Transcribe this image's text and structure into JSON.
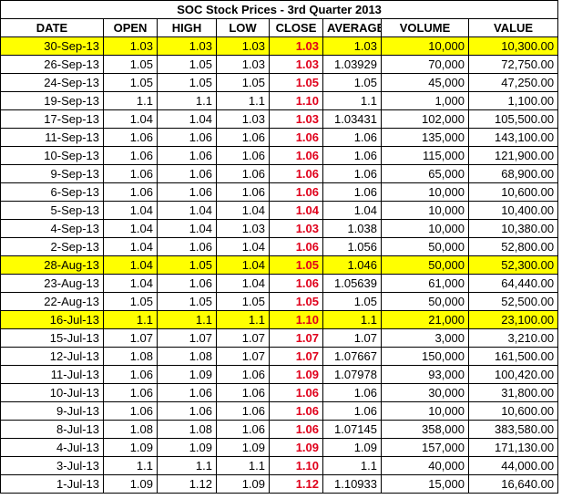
{
  "title": "SOC Stock Prices - 3rd Quarter 2013",
  "headers": [
    "DATE",
    "OPEN",
    "HIGH",
    "LOW",
    "CLOSE",
    "AVERAGE",
    "VOLUME",
    "VALUE"
  ],
  "colors": {
    "highlight": "#ffff00",
    "close_text": "#e0001b"
  },
  "rows": [
    {
      "date": "30-Sep-13",
      "open": "1.03",
      "high": "1.03",
      "low": "1.03",
      "close": "1.03",
      "average": "1.03",
      "volume": "10,000",
      "value": "10,300.00",
      "highlight": true
    },
    {
      "date": "26-Sep-13",
      "open": "1.05",
      "high": "1.05",
      "low": "1.03",
      "close": "1.03",
      "average": "1.03929",
      "volume": "70,000",
      "value": "72,750.00",
      "highlight": false
    },
    {
      "date": "24-Sep-13",
      "open": "1.05",
      "high": "1.05",
      "low": "1.05",
      "close": "1.05",
      "average": "1.05",
      "volume": "45,000",
      "value": "47,250.00",
      "highlight": false
    },
    {
      "date": "19-Sep-13",
      "open": "1.1",
      "high": "1.1",
      "low": "1.1",
      "close": "1.10",
      "average": "1.1",
      "volume": "1,000",
      "value": "1,100.00",
      "highlight": false
    },
    {
      "date": "17-Sep-13",
      "open": "1.04",
      "high": "1.04",
      "low": "1.03",
      "close": "1.03",
      "average": "1.03431",
      "volume": "102,000",
      "value": "105,500.00",
      "highlight": false
    },
    {
      "date": "11-Sep-13",
      "open": "1.06",
      "high": "1.06",
      "low": "1.06",
      "close": "1.06",
      "average": "1.06",
      "volume": "135,000",
      "value": "143,100.00",
      "highlight": false
    },
    {
      "date": "10-Sep-13",
      "open": "1.06",
      "high": "1.06",
      "low": "1.06",
      "close": "1.06",
      "average": "1.06",
      "volume": "115,000",
      "value": "121,900.00",
      "highlight": false
    },
    {
      "date": "9-Sep-13",
      "open": "1.06",
      "high": "1.06",
      "low": "1.06",
      "close": "1.06",
      "average": "1.06",
      "volume": "65,000",
      "value": "68,900.00",
      "highlight": false
    },
    {
      "date": "6-Sep-13",
      "open": "1.06",
      "high": "1.06",
      "low": "1.06",
      "close": "1.06",
      "average": "1.06",
      "volume": "10,000",
      "value": "10,600.00",
      "highlight": false
    },
    {
      "date": "5-Sep-13",
      "open": "1.04",
      "high": "1.04",
      "low": "1.04",
      "close": "1.04",
      "average": "1.04",
      "volume": "10,000",
      "value": "10,400.00",
      "highlight": false
    },
    {
      "date": "4-Sep-13",
      "open": "1.04",
      "high": "1.04",
      "low": "1.03",
      "close": "1.03",
      "average": "1.038",
      "volume": "10,000",
      "value": "10,380.00",
      "highlight": false
    },
    {
      "date": "2-Sep-13",
      "open": "1.04",
      "high": "1.06",
      "low": "1.04",
      "close": "1.06",
      "average": "1.056",
      "volume": "50,000",
      "value": "52,800.00",
      "highlight": false
    },
    {
      "date": "28-Aug-13",
      "open": "1.04",
      "high": "1.05",
      "low": "1.04",
      "close": "1.05",
      "average": "1.046",
      "volume": "50,000",
      "value": "52,300.00",
      "highlight": true
    },
    {
      "date": "23-Aug-13",
      "open": "1.04",
      "high": "1.06",
      "low": "1.04",
      "close": "1.06",
      "average": "1.05639",
      "volume": "61,000",
      "value": "64,440.00",
      "highlight": false
    },
    {
      "date": "22-Aug-13",
      "open": "1.05",
      "high": "1.05",
      "low": "1.05",
      "close": "1.05",
      "average": "1.05",
      "volume": "50,000",
      "value": "52,500.00",
      "highlight": false
    },
    {
      "date": "16-Jul-13",
      "open": "1.1",
      "high": "1.1",
      "low": "1.1",
      "close": "1.10",
      "average": "1.1",
      "volume": "21,000",
      "value": "23,100.00",
      "highlight": true
    },
    {
      "date": "15-Jul-13",
      "open": "1.07",
      "high": "1.07",
      "low": "1.07",
      "close": "1.07",
      "average": "1.07",
      "volume": "3,000",
      "value": "3,210.00",
      "highlight": false
    },
    {
      "date": "12-Jul-13",
      "open": "1.08",
      "high": "1.08",
      "low": "1.07",
      "close": "1.07",
      "average": "1.07667",
      "volume": "150,000",
      "value": "161,500.00",
      "highlight": false
    },
    {
      "date": "11-Jul-13",
      "open": "1.06",
      "high": "1.09",
      "low": "1.06",
      "close": "1.09",
      "average": "1.07978",
      "volume": "93,000",
      "value": "100,420.00",
      "highlight": false
    },
    {
      "date": "10-Jul-13",
      "open": "1.06",
      "high": "1.06",
      "low": "1.06",
      "close": "1.06",
      "average": "1.06",
      "volume": "30,000",
      "value": "31,800.00",
      "highlight": false
    },
    {
      "date": "9-Jul-13",
      "open": "1.06",
      "high": "1.06",
      "low": "1.06",
      "close": "1.06",
      "average": "1.06",
      "volume": "10,000",
      "value": "10,600.00",
      "highlight": false
    },
    {
      "date": "8-Jul-13",
      "open": "1.08",
      "high": "1.08",
      "low": "1.06",
      "close": "1.06",
      "average": "1.07145",
      "volume": "358,000",
      "value": "383,580.00",
      "highlight": false
    },
    {
      "date": "4-Jul-13",
      "open": "1.09",
      "high": "1.09",
      "low": "1.09",
      "close": "1.09",
      "average": "1.09",
      "volume": "157,000",
      "value": "171,130.00",
      "highlight": false
    },
    {
      "date": "3-Jul-13",
      "open": "1.1",
      "high": "1.1",
      "low": "1.1",
      "close": "1.10",
      "average": "1.1",
      "volume": "40,000",
      "value": "44,000.00",
      "highlight": false
    },
    {
      "date": "1-Jul-13",
      "open": "1.09",
      "high": "1.12",
      "low": "1.09",
      "close": "1.12",
      "average": "1.10933",
      "volume": "15,000",
      "value": "16,640.00",
      "highlight": false
    }
  ]
}
